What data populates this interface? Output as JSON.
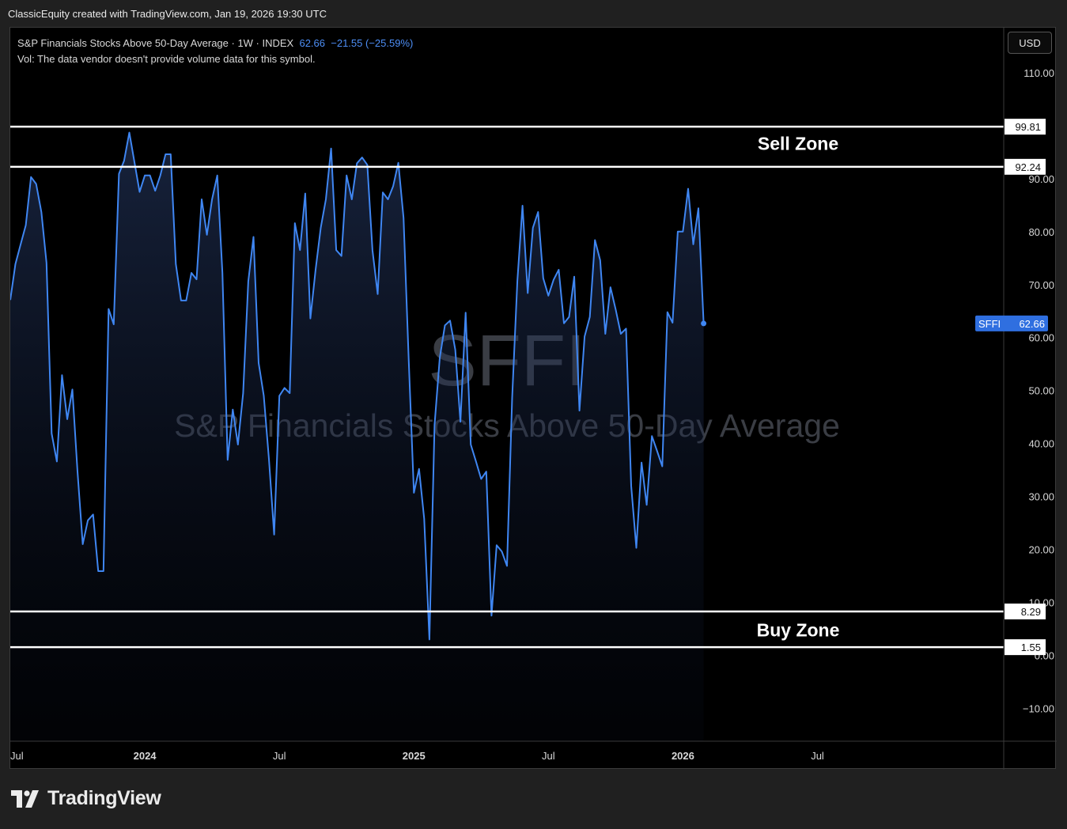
{
  "header": {
    "caption": "ClassicEquity created with TradingView.com, Jan 19, 2026 19:30 UTC"
  },
  "legend": {
    "title": "S&P Financials Stocks Above 50-Day Average · 1W · INDEX",
    "value": "62.66",
    "change": "−21.55 (−25.59%)",
    "volume_note": "Vol: The data vendor doesn't provide volume data for this symbol."
  },
  "currency": "USD",
  "watermark": {
    "symbol": "SFFI",
    "name": "S&P Financials Stocks Above 50-Day Average"
  },
  "colors": {
    "line": "#3f86f2",
    "background": "#000000",
    "zone_lines": "#ffffff",
    "last_price_badge": "#2f6fe0"
  },
  "logo": {
    "text": "TradingView"
  },
  "chart_data": {
    "type": "area",
    "symbol": "SFFI",
    "interval": "1W",
    "x_ticks": [
      "Jul",
      "2024",
      "Jul",
      "2025",
      "Jul",
      "2026",
      "Jul"
    ],
    "y_ticks": [
      "110.00",
      "90.00",
      "80.00",
      "70.00",
      "60.00",
      "50.00",
      "40.00",
      "30.00",
      "20.00",
      "10.00",
      "0.00",
      "−10.00"
    ],
    "ylim": [
      -16.2,
      118.5
    ],
    "series": [
      {
        "values": [
          67.1,
          73.9,
          77.6,
          81.2,
          90.3,
          89.0,
          83.7,
          74.1,
          41.9,
          36.6,
          52.9,
          44.6,
          50.2,
          34.7,
          21.0,
          25.5,
          26.6,
          15.9,
          15.9,
          65.4,
          62.5,
          90.9,
          93.4,
          98.7,
          93.1,
          87.5,
          90.6,
          90.6,
          87.7,
          90.6,
          94.6,
          94.6,
          73.9,
          67.0,
          67.0,
          72.2,
          71.0,
          86.1,
          79.4,
          86.1,
          90.6,
          72.2,
          36.9,
          46.4,
          39.8,
          49.5,
          70.6,
          79.0,
          55.2,
          49.0,
          36.9,
          22.8,
          49.0,
          50.5,
          49.5,
          81.6,
          76.5,
          87.2,
          63.6,
          72.8,
          80.7,
          86.1,
          95.7,
          76.5,
          75.4,
          90.6,
          86.1,
          92.9,
          94.0,
          92.6,
          76.5,
          68.2,
          87.4,
          86.1,
          88.6,
          93.0,
          82.6,
          55.9,
          30.7,
          35.2,
          25.8,
          3.0,
          43.5,
          56.2,
          62.3,
          63.2,
          57.7,
          44.1,
          64.7,
          39.8,
          36.6,
          33.3,
          34.7,
          7.5,
          20.8,
          19.6,
          16.9,
          48.6,
          70.7,
          84.9,
          68.4,
          80.7,
          83.7,
          71.2,
          67.9,
          70.9,
          72.8,
          62.7,
          63.9,
          71.5,
          46.2,
          60.2,
          63.9,
          78.4,
          74.6,
          60.7,
          69.5,
          65.3,
          60.7,
          61.7,
          32.0,
          20.3,
          36.4,
          28.4,
          41.4,
          38.6,
          35.7,
          64.8,
          62.8,
          80.0,
          80.0,
          88.1,
          77.6,
          84.4,
          62.66
        ],
        "last_value": 62.66,
        "last_label": "62.66"
      }
    ],
    "horizontal_lines": [
      {
        "value": 99.81,
        "label": "99.81"
      },
      {
        "value": 92.24,
        "label": "92.24"
      },
      {
        "value": 8.29,
        "label": "8.29"
      },
      {
        "value": 1.55,
        "label": "1.55"
      }
    ],
    "annotations": [
      {
        "text": "Sell Zone",
        "value": 96.6
      },
      {
        "text": "Buy Zone",
        "value": 4.8
      }
    ],
    "x_range_weeks": [
      0,
      192
    ],
    "x_tick_weeks": [
      0,
      26,
      52,
      78,
      104,
      130,
      156
    ],
    "data_start_week": 0,
    "grid": false,
    "legend_position": "top-left"
  }
}
